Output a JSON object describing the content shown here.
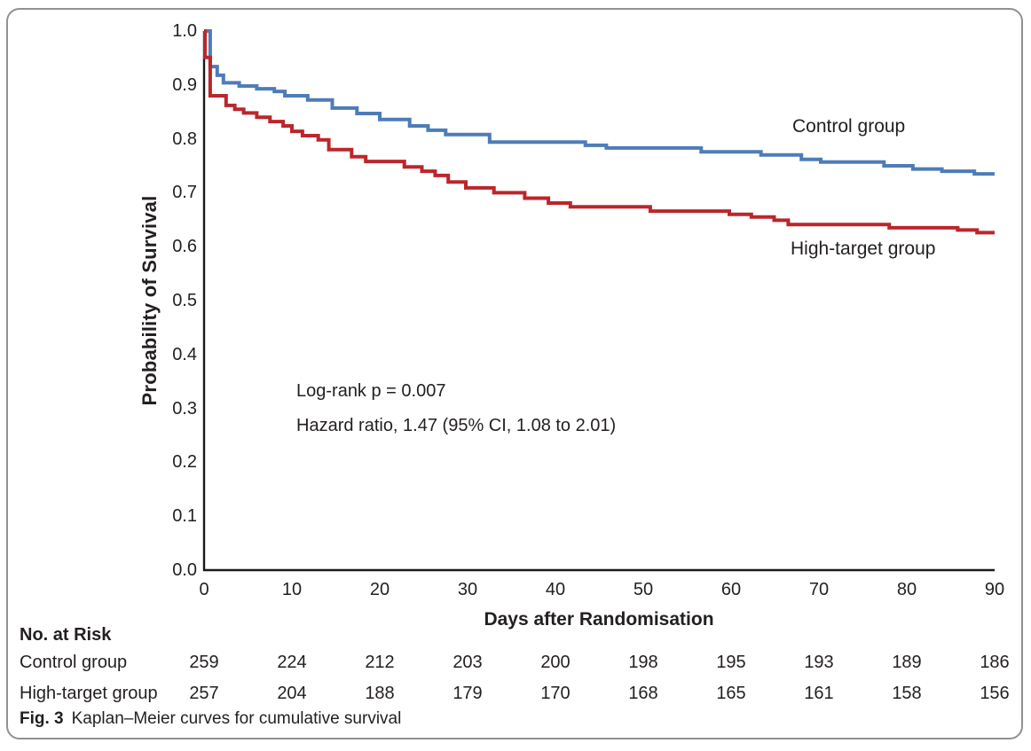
{
  "figure": {
    "caption_label": "Fig. 3",
    "caption_text": "Kaplan–Meier curves for cumulative survival"
  },
  "chart_data": {
    "type": "line",
    "subtype": "kaplan_meier_step",
    "title": "",
    "xlabel": "Days after Randomisation",
    "ylabel": "Probability of Survival",
    "xlim": [
      0,
      90
    ],
    "ylim": [
      0.0,
      1.0
    ],
    "x_ticks": [
      "0",
      "10",
      "20",
      "30",
      "40",
      "50",
      "60",
      "70",
      "80",
      "90"
    ],
    "y_ticks": [
      "0.0",
      "0.1",
      "0.2",
      "0.3",
      "0.4",
      "0.5",
      "0.6",
      "0.7",
      "0.8",
      "0.9",
      "1.0"
    ],
    "grid": false,
    "legend_position": "inline-curve-labels",
    "axis_color": "#1a1a1a",
    "annotations": [
      "Log-rank p = 0.007",
      "Hazard ratio, 1.47 (95% CI, 1.08 to 2.01)"
    ],
    "series": [
      {
        "name": "Control group",
        "color": "#4E7CB8",
        "points": [
          [
            0,
            1.0
          ],
          [
            0.7,
            0.934
          ],
          [
            1.5,
            0.918
          ],
          [
            2.2,
            0.904
          ],
          [
            4,
            0.898
          ],
          [
            6,
            0.893
          ],
          [
            8,
            0.888
          ],
          [
            9.2,
            0.88
          ],
          [
            11.8,
            0.872
          ],
          [
            14.6,
            0.857
          ],
          [
            17.4,
            0.847
          ],
          [
            20,
            0.836
          ],
          [
            23.4,
            0.824
          ],
          [
            25.5,
            0.816
          ],
          [
            27.5,
            0.808
          ],
          [
            32.5,
            0.794
          ],
          [
            43.4,
            0.788
          ],
          [
            45.8,
            0.783
          ],
          [
            56.6,
            0.776
          ],
          [
            63.4,
            0.77
          ],
          [
            68,
            0.762
          ],
          [
            70.2,
            0.757
          ],
          [
            77.4,
            0.75
          ],
          [
            80.7,
            0.744
          ],
          [
            84,
            0.74
          ],
          [
            87.7,
            0.735
          ]
        ]
      },
      {
        "name": "High-target group",
        "color": "#BB262B",
        "points": [
          [
            0,
            1.0
          ],
          [
            0.1,
            0.951
          ],
          [
            0.7,
            0.88
          ],
          [
            2.5,
            0.862
          ],
          [
            3.5,
            0.855
          ],
          [
            4.5,
            0.848
          ],
          [
            6,
            0.84
          ],
          [
            7.5,
            0.832
          ],
          [
            9,
            0.824
          ],
          [
            10,
            0.814
          ],
          [
            11.2,
            0.806
          ],
          [
            13,
            0.798
          ],
          [
            14.2,
            0.78
          ],
          [
            16.8,
            0.767
          ],
          [
            18.4,
            0.758
          ],
          [
            22.8,
            0.748
          ],
          [
            24.8,
            0.74
          ],
          [
            26.3,
            0.732
          ],
          [
            27.8,
            0.72
          ],
          [
            29.8,
            0.709
          ],
          [
            33,
            0.7
          ],
          [
            36.5,
            0.69
          ],
          [
            39.2,
            0.681
          ],
          [
            41.7,
            0.674
          ],
          [
            50.8,
            0.666
          ],
          [
            59.8,
            0.66
          ],
          [
            62.3,
            0.655
          ],
          [
            64.9,
            0.649
          ],
          [
            66.5,
            0.641
          ],
          [
            78,
            0.635
          ],
          [
            85.8,
            0.631
          ],
          [
            88,
            0.626
          ]
        ]
      }
    ]
  },
  "risk_table": {
    "title": "No. at Risk",
    "days": [
      0,
      10,
      20,
      30,
      40,
      50,
      60,
      70,
      80,
      90
    ],
    "rows": [
      {
        "label": "Control group",
        "values": [
          "259",
          "224",
          "212",
          "203",
          "200",
          "198",
          "195",
          "193",
          "189",
          "186"
        ]
      },
      {
        "label": "High-target group",
        "values": [
          "257",
          "204",
          "188",
          "179",
          "170",
          "168",
          "165",
          "161",
          "158",
          "156"
        ]
      }
    ]
  }
}
